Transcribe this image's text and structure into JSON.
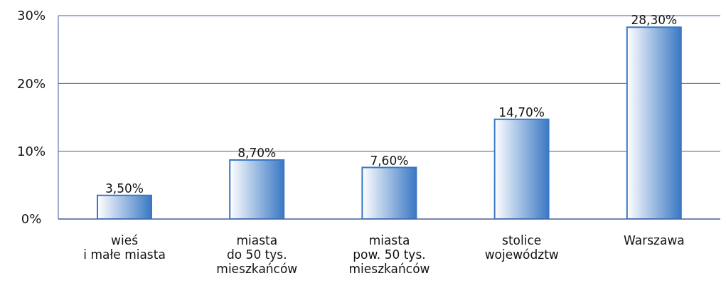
{
  "chart_data": {
    "type": "bar",
    "categories": [
      "wieś\ni małe miasta",
      "miasta\ndo 50 tys.\nmieszkańców",
      "miasta\npow. 50 tys.\nmieszkańców",
      "stolice\nwojewództw",
      "Warszawa"
    ],
    "values": [
      3.5,
      8.7,
      7.6,
      14.7,
      28.3
    ],
    "value_labels": [
      "3,50%",
      "8,70%",
      "7,60%",
      "14,70%",
      "28,30%"
    ],
    "color": "#3a78c4",
    "ylim": [
      0,
      30
    ],
    "yticks": [
      {
        "value": 0,
        "label": "0%"
      },
      {
        "value": 10,
        "label": "10%"
      },
      {
        "value": 20,
        "label": "20%"
      },
      {
        "value": 30,
        "label": "30%"
      }
    ],
    "grid": "y",
    "legend": false
  }
}
